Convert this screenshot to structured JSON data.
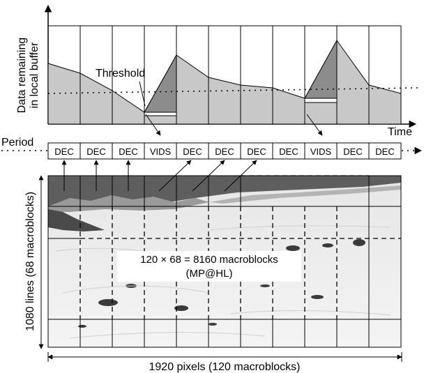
{
  "top_chart": {
    "y_label_line1": "Data remaining",
    "y_label_line2": "in local buffer",
    "threshold_label": "Threshold",
    "time_label": "Time"
  },
  "period": {
    "label": "Period",
    "cells": [
      "DEC",
      "DEC",
      "DEC",
      "VIDS",
      "DEC",
      "DEC",
      "DEC",
      "DEC",
      "VIDS",
      "DEC",
      "DEC"
    ]
  },
  "frame": {
    "center_line1": "120 × 68 = 8160 macroblocks",
    "center_line2": "(MP@HL)",
    "height_label": "1080 lines (68 macroblocks)",
    "width_label": "1920 pixels (120 macroblocks)"
  },
  "colors": {
    "fill_light": "#c8c8c8",
    "fill_dark": "#8c8c8c",
    "sky": "#6a6a6a",
    "snow": "#eeeeee"
  }
}
